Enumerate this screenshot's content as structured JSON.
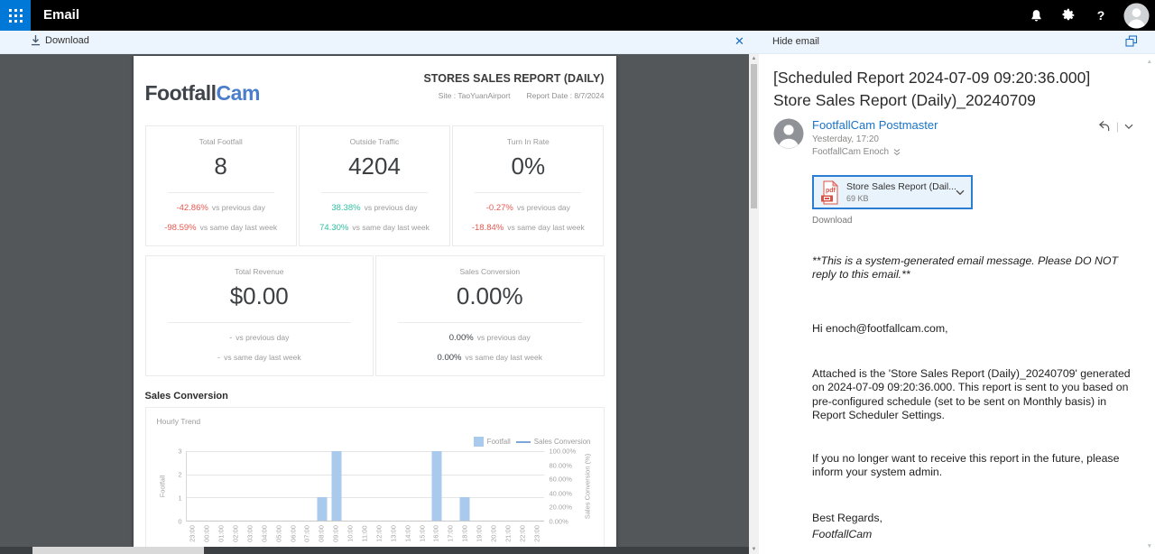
{
  "colors": {
    "accent": "#0078d7",
    "link_blue": "#1a73c8",
    "negative_red": "#e8594f",
    "positive_green": "#2fbf9f",
    "neutral_gray": "#9aa0a6",
    "dark_value": "#3c4043",
    "bar_blue": "#a9c9ed",
    "line_blue": "#7da7d9"
  },
  "app_header": {
    "title": "Email"
  },
  "toolbar": {
    "download": "Download",
    "hide_email": "Hide email"
  },
  "report": {
    "logo_part1": "Footfall",
    "logo_part2": "Cam",
    "title": "STORES SALES REPORT (DAILY)",
    "site": "Site : TaoYuanAirport",
    "report_date": "Report Date : 8/7/2024",
    "cards_row1": [
      {
        "label": "Total Footfall",
        "value": "8",
        "deltas": [
          {
            "value": "-42.86%",
            "color": "#e8594f",
            "label": "vs previous day"
          },
          {
            "value": "-98.59%",
            "color": "#e8594f",
            "label": "vs same day last week"
          }
        ]
      },
      {
        "label": "Outside Traffic",
        "value": "4204",
        "deltas": [
          {
            "value": "38.38%",
            "color": "#2fbf9f",
            "label": "vs previous day"
          },
          {
            "value": "74.30%",
            "color": "#2fbf9f",
            "label": "vs same day last week"
          }
        ]
      },
      {
        "label": "Turn In Rate",
        "value": "0%",
        "deltas": [
          {
            "value": "-0.27%",
            "color": "#e8594f",
            "label": "vs previous day"
          },
          {
            "value": "-18.84%",
            "color": "#e8594f",
            "label": "vs same day last week"
          }
        ]
      }
    ],
    "cards_row2": [
      {
        "label": "Total Revenue",
        "value": "$0.00",
        "deltas": [
          {
            "value": "-",
            "color": "#9aa0a6",
            "label": "vs previous day"
          },
          {
            "value": "-",
            "color": "#9aa0a6",
            "label": "vs same day last week"
          }
        ]
      },
      {
        "label": "Sales Conversion",
        "value": "0.00%",
        "deltas": [
          {
            "value": "0.00%",
            "color": "#3c4043",
            "label": "vs previous day"
          },
          {
            "value": "0.00%",
            "color": "#3c4043",
            "label": "vs same day last week"
          }
        ]
      }
    ],
    "section_title": "Sales Conversion",
    "chart_subtitle": "Hourly Trend"
  },
  "chart_data": {
    "type": "bar",
    "title": "Sales Conversion - Hourly Trend",
    "categories": [
      "23:00",
      "00:00",
      "01:00",
      "02:00",
      "03:00",
      "04:00",
      "05:00",
      "06:00",
      "07:00",
      "08:00",
      "09:00",
      "10:00",
      "11:00",
      "12:00",
      "13:00",
      "14:00",
      "15:00",
      "16:00",
      "17:00",
      "18:00",
      "19:00",
      "20:00",
      "21:00",
      "22:00",
      "23:00"
    ],
    "series": [
      {
        "name": "Footfall",
        "type": "bar",
        "color": "#a9c9ed",
        "axis": "left",
        "values": [
          0,
          0,
          0,
          0,
          0,
          0,
          0,
          0,
          0,
          1,
          3,
          0,
          0,
          0,
          0,
          0,
          0,
          3,
          0,
          1,
          0,
          0,
          0,
          0,
          0
        ]
      },
      {
        "name": "Sales Conversion",
        "type": "line",
        "color": "#7da7d9",
        "axis": "right",
        "values": [
          0,
          0,
          0,
          0,
          0,
          0,
          0,
          0,
          0,
          0,
          0,
          0,
          0,
          0,
          0,
          0,
          0,
          0,
          0,
          0,
          0,
          0,
          0,
          0,
          0
        ]
      }
    ],
    "left_axis": {
      "label": "Footfall",
      "ticks": [
        0,
        1,
        2,
        3
      ],
      "max": 3
    },
    "right_axis": {
      "label": "Sales Conversion (%)",
      "ticks": [
        "0.00%",
        "20.00%",
        "40.00%",
        "60.00%",
        "80.00%",
        "100.00%"
      ],
      "max": 100
    },
    "grid": true,
    "legend_position": "top-right",
    "legend": [
      {
        "label": "Footfall",
        "type": "bar",
        "color": "#a9c9ed"
      },
      {
        "label": "Sales Conversion",
        "type": "line",
        "color": "#7da7d9"
      }
    ]
  },
  "email": {
    "subject": "[Scheduled Report 2024-07-09 09:20:36.000] Store Sales Report (Daily)_20240709",
    "sender": "FootfallCam Postmaster",
    "sent_time": "Yesterday, 17:20",
    "recipient": "FootfallCam Enoch",
    "attachment": {
      "name": "Store Sales Report (Dail...",
      "size": "69 KB",
      "type": "pdf"
    },
    "download_label": "Download",
    "body": [
      {
        "text": "**This is a system-generated email message. Please DO NOT reply to this email.**",
        "italic": true
      },
      {
        "text": "Hi enoch@footfallcam.com,"
      },
      {
        "text": "Attached is the 'Store Sales Report (Daily)_20240709' generated on 2024-07-09 09:20:36.000. This report is sent to you based on pre-configured schedule (set to be sent on Monthly basis) in Report Scheduler Settings."
      },
      {
        "text": "If you no longer want to receive this report in the future, please inform your system admin."
      },
      {
        "text": "Best Regards,"
      },
      {
        "text": "FootfallCam",
        "italic": true
      }
    ]
  }
}
